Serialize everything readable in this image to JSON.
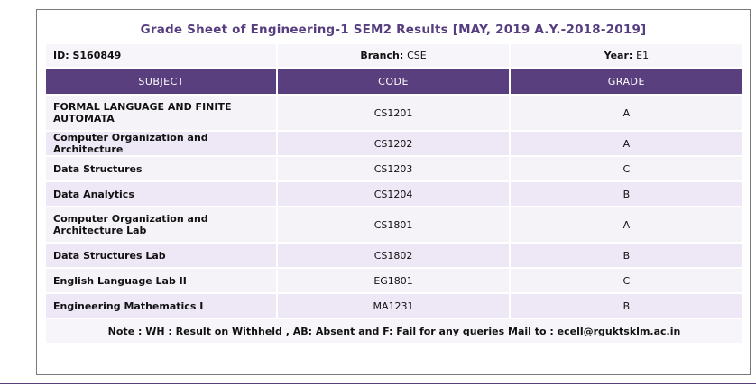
{
  "title": "Grade Sheet of Engineering-1 SEM2 Results [MAY, 2019 A.Y.-2018-2019]",
  "info": {
    "id_label": "ID:",
    "id_value": "S160849",
    "branch_label": "Branch:",
    "branch_value": "CSE",
    "year_label": "Year:",
    "year_value": "E1"
  },
  "headers": {
    "subject": "SUBJECT",
    "code": "CODE",
    "grade": "GRADE"
  },
  "rows": [
    {
      "subject": "FORMAL LANGUAGE AND FINITE AUTOMATA",
      "code": "CS1201",
      "grade": "A"
    },
    {
      "subject": "Computer Organization and Architecture",
      "code": "CS1202",
      "grade": "A"
    },
    {
      "subject": "Data Structures",
      "code": "CS1203",
      "grade": "C"
    },
    {
      "subject": "Data Analytics",
      "code": "CS1204",
      "grade": "B"
    },
    {
      "subject": "Computer Organization and Architecture Lab",
      "code": "CS1801",
      "grade": "A"
    },
    {
      "subject": "Data Structures Lab",
      "code": "CS1802",
      "grade": "B"
    },
    {
      "subject": "English Language Lab II",
      "code": "EG1801",
      "grade": "C"
    },
    {
      "subject": "Engineering Mathematics I",
      "code": "MA1231",
      "grade": "B"
    }
  ],
  "note": "Note : WH : Result on Withheld , AB: Absent and F: Fail for any queries Mail to : ecell@rguktsklm.ac.in",
  "colors": {
    "header_bg": "#5a3f7e",
    "title_color": "#553d7f",
    "row_light": "#f5f3f8",
    "row_dark": "#ede7f6"
  }
}
